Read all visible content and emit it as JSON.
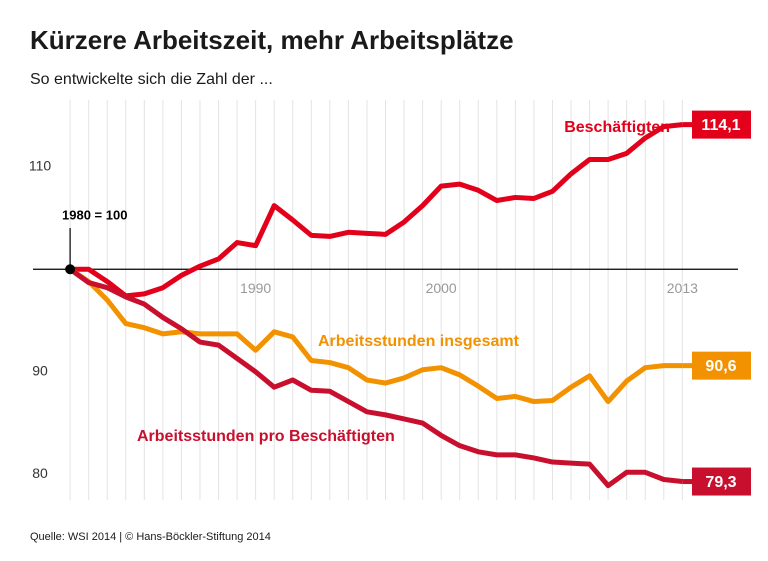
{
  "chart_data": {
    "type": "line",
    "title": "Kürzere Arbeitszeit, mehr Arbeitsplätze",
    "subtitle": "So entwickelte sich die Zahl der ...",
    "annotation": "1980 = 100",
    "source": "Quelle: WSI 2014 | © Hans-Böckler-Stiftung 2014",
    "x": [
      1980,
      1981,
      1982,
      1983,
      1984,
      1985,
      1986,
      1987,
      1988,
      1989,
      1990,
      1991,
      1992,
      1993,
      1994,
      1995,
      1996,
      1997,
      1998,
      1999,
      2000,
      2001,
      2002,
      2003,
      2004,
      2005,
      2006,
      2007,
      2008,
      2009,
      2010,
      2011,
      2012,
      2013
    ],
    "xlim": [
      1978,
      2016
    ],
    "xticks": [
      1990,
      2000,
      2013
    ],
    "ylim": [
      77.5,
      116.5
    ],
    "yticks": [
      80,
      90,
      110
    ],
    "baseline": 100,
    "grid": true,
    "series": [
      {
        "name": "Beschäftigten",
        "color": "#e2001a",
        "values": [
          100,
          100,
          98.8,
          97.4,
          97.6,
          98.2,
          99.4,
          100.3,
          101,
          102.6,
          102.3,
          106.2,
          104.8,
          103.3,
          103.2,
          103.6,
          103.5,
          103.4,
          104.6,
          106.2,
          108.1,
          108.3,
          107.7,
          106.7,
          107,
          106.9,
          107.6,
          109.3,
          110.7,
          110.7,
          111.3,
          112.8,
          113.9,
          114.1
        ],
        "value_labels": [
          null,
          null,
          null,
          null,
          null,
          null,
          null,
          null,
          null,
          null,
          null,
          null,
          null,
          null,
          null,
          null,
          null,
          null,
          null,
          null,
          null,
          null,
          null,
          null,
          null,
          null,
          null,
          null,
          null,
          null,
          null,
          null,
          null,
          "114,1"
        ]
      },
      {
        "name": "Arbeitsstunden insgesamt",
        "color": "#f39200",
        "values": [
          100,
          98.8,
          97,
          94.7,
          94.3,
          93.7,
          93.9,
          93.7,
          93.7,
          93.7,
          92.1,
          93.9,
          93.4,
          91.1,
          90.9,
          90.4,
          89.2,
          88.9,
          89.4,
          90.2,
          90.4,
          89.7,
          88.6,
          87.4,
          87.6,
          87.1,
          87.2,
          88.5,
          89.6,
          87.1,
          89.1,
          90.4,
          90.6,
          90.6
        ],
        "value_labels": [
          null,
          null,
          null,
          null,
          null,
          null,
          null,
          null,
          null,
          null,
          null,
          null,
          null,
          null,
          null,
          null,
          null,
          null,
          null,
          null,
          null,
          null,
          null,
          null,
          null,
          null,
          null,
          null,
          null,
          null,
          null,
          null,
          null,
          "90,6"
        ]
      },
      {
        "name": "Arbeitsstunden pro Beschäftigten",
        "color": "#c8102e",
        "values": [
          100,
          98.7,
          98.2,
          97.3,
          96.6,
          95.3,
          94.2,
          92.9,
          92.6,
          91.3,
          90,
          88.5,
          89.2,
          88.2,
          88.1,
          87.1,
          86.1,
          85.8,
          85.4,
          85,
          83.8,
          82.8,
          82.2,
          81.9,
          81.9,
          81.6,
          81.2,
          81.1,
          81,
          78.9,
          80.2,
          80.2,
          79.5,
          79.3
        ],
        "value_labels": [
          null,
          null,
          null,
          null,
          null,
          null,
          null,
          null,
          null,
          null,
          null,
          null,
          null,
          null,
          null,
          null,
          null,
          null,
          null,
          null,
          null,
          null,
          null,
          null,
          null,
          null,
          null,
          null,
          null,
          null,
          null,
          null,
          null,
          "79,3"
        ]
      }
    ]
  }
}
